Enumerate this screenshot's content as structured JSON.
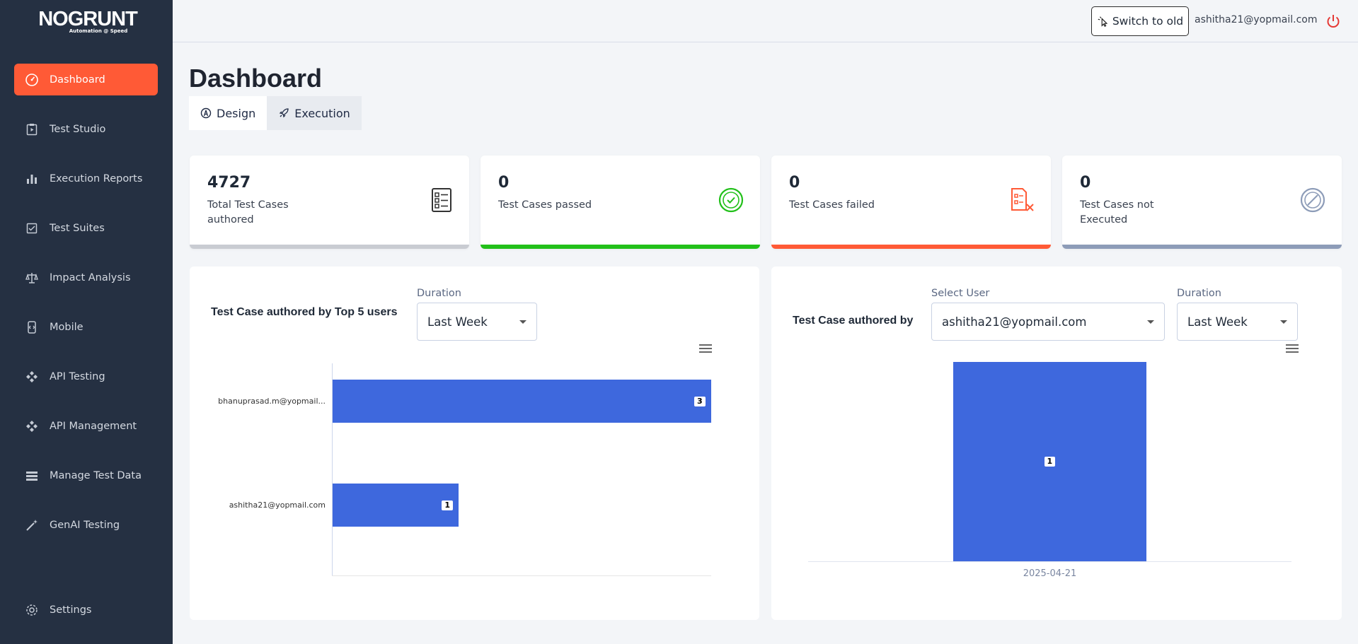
{
  "app": {
    "logo_text": "NOGRUNT",
    "logo_tagline": "Automation @ Speed"
  },
  "sidebar": {
    "items": [
      {
        "label": "Dashboard",
        "icon": "speedometer-icon",
        "active": true
      },
      {
        "label": "Test Studio",
        "icon": "clipboard-play-icon"
      },
      {
        "label": "Execution Reports",
        "icon": "bar-chart-icon"
      },
      {
        "label": "Test Suites",
        "icon": "checklist-icon"
      },
      {
        "label": "Impact Analysis",
        "icon": "scale-icon"
      },
      {
        "label": "Mobile",
        "icon": "mobile-icon"
      },
      {
        "label": "API Testing",
        "icon": "api-icon"
      },
      {
        "label": "API Management",
        "icon": "api-icon"
      },
      {
        "label": "Manage Test Data",
        "icon": "database-icon"
      },
      {
        "label": "GenAI Testing",
        "icon": "magic-wand-icon"
      },
      {
        "label": "Settings",
        "icon": "gear-icon"
      }
    ]
  },
  "header": {
    "switch_label": "Switch to old",
    "user_email": "ashitha21@yopmail.com"
  },
  "page": {
    "title": "Dashboard",
    "tabs": [
      {
        "label": "Design",
        "active": true
      },
      {
        "label": "Execution",
        "active": false
      }
    ]
  },
  "stats": [
    {
      "value": "4727",
      "label": "Total Test Cases authored",
      "color": "#c9ccd2"
    },
    {
      "value": "0",
      "label": "Test Cases passed",
      "color": "#22c01a"
    },
    {
      "value": "0",
      "label": "Test Cases failed",
      "color": "#ff5a36"
    },
    {
      "value": "0",
      "label": "Test Cases not Executed",
      "color": "#8d9cb8"
    }
  ],
  "panel_left": {
    "title": "Test Case authored by Top 5 users",
    "duration_label": "Duration",
    "duration_value": "Last Week"
  },
  "panel_right": {
    "title": "Test Case authored by",
    "user_label": "Select User",
    "user_value": "ashitha21@yopmail.com",
    "duration_label": "Duration",
    "duration_value": "Last Week"
  },
  "chart_data": [
    {
      "type": "bar",
      "orientation": "horizontal",
      "categories": [
        "bhanuprasad.m@yopmail...",
        "ashitha21@yopmail.com"
      ],
      "values": [
        3,
        1
      ],
      "xlim": [
        0,
        3
      ],
      "color": "#3e68dd"
    },
    {
      "type": "bar",
      "categories": [
        "2025-04-21"
      ],
      "values": [
        1
      ],
      "ylim": [
        0,
        1
      ],
      "color": "#3e68dd"
    }
  ],
  "colors": {
    "sidebar_bg": "#253042",
    "accent": "#ff5a36",
    "bar": "#3e68dd"
  }
}
